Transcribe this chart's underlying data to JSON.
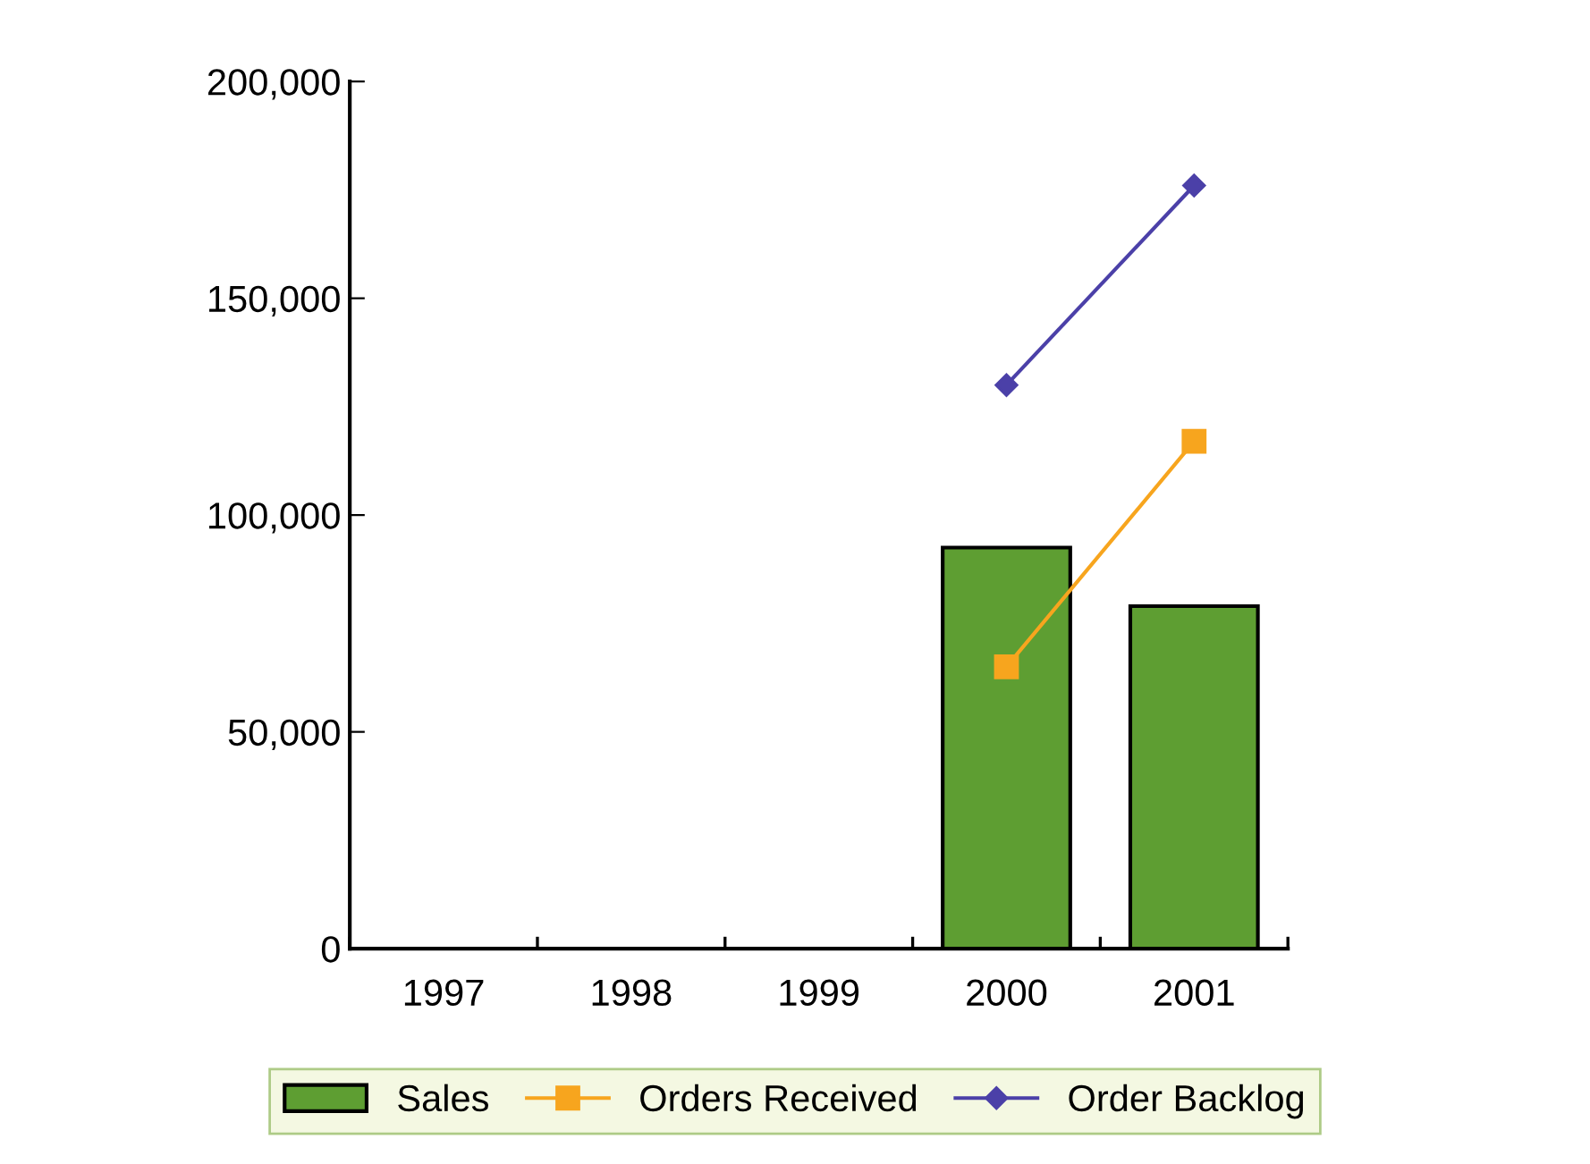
{
  "chart_data": {
    "type": "bar",
    "categories": [
      "1997",
      "1998",
      "1999",
      "2000",
      "2001"
    ],
    "series": [
      {
        "name": "Sales",
        "color": "#5e9e32",
        "values": [
          null,
          null,
          null,
          92500,
          79000
        ]
      },
      {
        "name": "Orders Received",
        "type": "line",
        "marker": "square",
        "color": "#f7a51e",
        "values": [
          null,
          null,
          null,
          65000,
          117000
        ]
      },
      {
        "name": "Order Backlog",
        "type": "line",
        "marker": "diamond",
        "color": "#4b40a8",
        "values": [
          null,
          null,
          null,
          130000,
          176000
        ]
      }
    ],
    "ylim": [
      0,
      200000
    ],
    "yticks": [
      {
        "value": 0,
        "label": "0"
      },
      {
        "value": 50000,
        "label": "50,000"
      },
      {
        "value": 100000,
        "label": "100,000"
      },
      {
        "value": 150000,
        "label": "150,000"
      },
      {
        "value": 200000,
        "label": "200,000"
      }
    ],
    "grid": false,
    "legend": "bottom"
  }
}
